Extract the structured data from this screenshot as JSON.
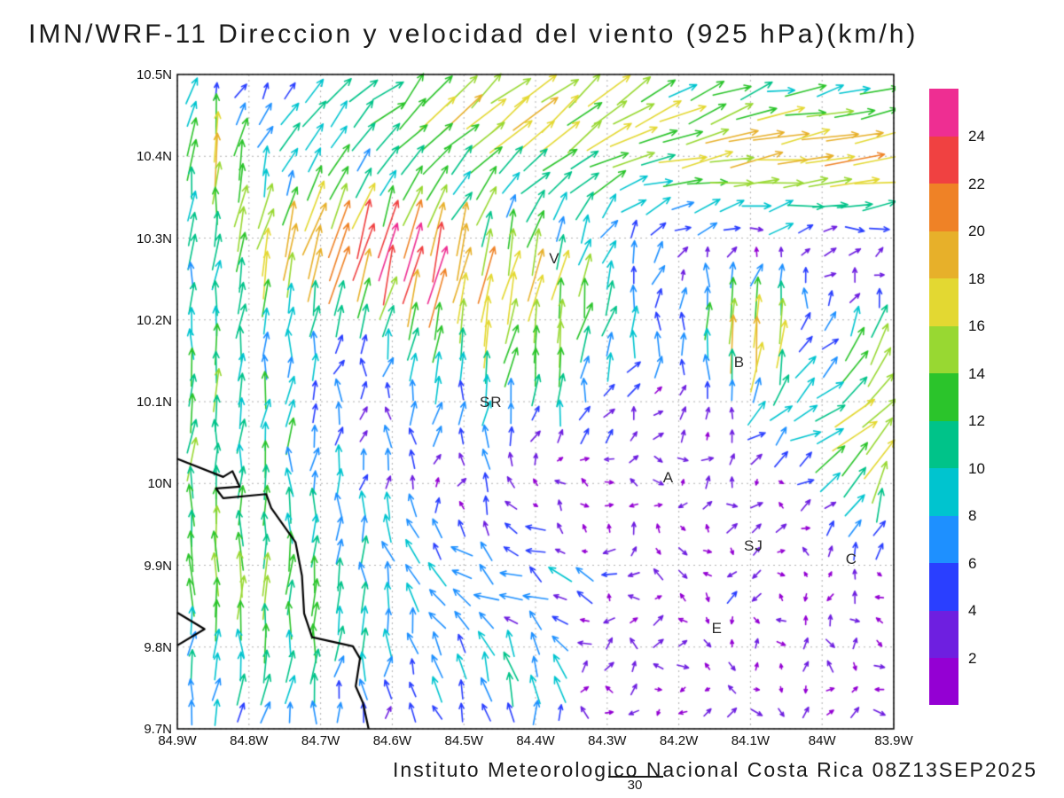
{
  "title": "IMN/WRF-11 Direccion y velocidad del viento (925 hPa)(km/h)",
  "caption": "Instituto Meteorologico Nacional Costa Rica 08Z13SEP2025",
  "footnote": "30",
  "chart_data": {
    "type": "vector_field",
    "model": "IMN/WRF-11",
    "variable": "Direccion y velocidad del viento",
    "pressure_level": "925 hPa",
    "units": "km/h",
    "valid_time": "08Z13SEP2025",
    "grid_lines": "dotted",
    "x_axis": {
      "kind": "longitude_west",
      "range": [
        84.9,
        83.9
      ],
      "ticks": [
        {
          "label": "84.9W",
          "value": 84.9
        },
        {
          "label": "84.8W",
          "value": 84.8
        },
        {
          "label": "84.7W",
          "value": 84.7
        },
        {
          "label": "84.6W",
          "value": 84.6
        },
        {
          "label": "84.5W",
          "value": 84.5
        },
        {
          "label": "84.4W",
          "value": 84.4
        },
        {
          "label": "84.3W",
          "value": 84.3
        },
        {
          "label": "84.2W",
          "value": 84.2
        },
        {
          "label": "84.1W",
          "value": 84.1
        },
        {
          "label": "84W",
          "value": 84.0
        },
        {
          "label": "83.9W",
          "value": 83.9
        }
      ]
    },
    "y_axis": {
      "kind": "latitude_north",
      "range": [
        9.7,
        10.5
      ],
      "ticks": [
        {
          "label": "10.5N",
          "value": 10.5
        },
        {
          "label": "10.4N",
          "value": 10.4
        },
        {
          "label": "10.3N",
          "value": 10.3
        },
        {
          "label": "10.2N",
          "value": 10.2
        },
        {
          "label": "10.1N",
          "value": 10.1
        },
        {
          "label": "10N",
          "value": 10.0
        },
        {
          "label": "9.9N",
          "value": 9.9
        },
        {
          "label": "9.8N",
          "value": 9.8
        },
        {
          "label": "9.7N",
          "value": 9.7
        }
      ]
    },
    "colorbar": {
      "label_side": "right",
      "levels": [
        2,
        4,
        6,
        8,
        10,
        12,
        14,
        16,
        18,
        20,
        22,
        24
      ],
      "colors": [
        "#9400d3",
        "#6e1fe0",
        "#2a3fff",
        "#1e90ff",
        "#00c4cf",
        "#00c389",
        "#2bc42b",
        "#98d832",
        "#e3d832",
        "#e7b02a",
        "#ef8226",
        "#f04141",
        "#ee2e92"
      ]
    },
    "stations": [
      {
        "label": "V",
        "lon": 84.37,
        "lat": 10.273
      },
      {
        "label": "B",
        "lon": 84.112,
        "lat": 10.147
      },
      {
        "label": "SR",
        "lon": 84.467,
        "lat": 10.098
      },
      {
        "label": "A",
        "lon": 84.211,
        "lat": 10.006
      },
      {
        "label": "SJ",
        "lon": 84.098,
        "lat": 9.922
      },
      {
        "label": "C",
        "lon": 83.956,
        "lat": 9.906
      },
      {
        "label": "E",
        "lon": 84.143,
        "lat": 9.821
      }
    ],
    "coastlines": [
      [
        [
          84.9,
          10.03
        ],
        [
          84.836,
          10.008
        ],
        [
          84.823,
          10.015
        ],
        [
          84.813,
          9.996
        ],
        [
          84.846,
          9.994
        ],
        [
          84.836,
          9.982
        ],
        [
          84.776,
          9.987
        ],
        [
          84.769,
          9.97
        ],
        [
          84.735,
          9.928
        ],
        [
          84.726,
          9.887
        ],
        [
          84.723,
          9.841
        ],
        [
          84.712,
          9.812
        ],
        [
          84.655,
          9.801
        ],
        [
          84.645,
          9.786
        ],
        [
          84.651,
          9.752
        ],
        [
          84.641,
          9.732
        ],
        [
          84.633,
          9.7
        ]
      ],
      [
        [
          84.9,
          9.842
        ],
        [
          84.862,
          9.822
        ],
        [
          84.9,
          9.802
        ]
      ]
    ],
    "wind_field": {
      "grid": {
        "lon_start": 84.88,
        "lon_end": 83.92,
        "cols": 29,
        "lat_start": 10.48,
        "lat_end": 9.72,
        "rows": 28
      },
      "base_flow": {
        "u": 0.4,
        "v": 0.6
      },
      "noise": {
        "seed": 20250913,
        "amp": 2.6
      },
      "features": [
        {
          "name": "ne-westerly-jet",
          "lon": 83.95,
          "lat": 10.42,
          "rlon": 0.38,
          "rlat": 0.09,
          "u": 15,
          "v": 1
        },
        {
          "name": "ne-jet-south-edge",
          "lon": 83.97,
          "lat": 10.37,
          "rlon": 0.24,
          "rlat": 0.05,
          "u": 5,
          "v": 0
        },
        {
          "name": "north-center-ne-flow",
          "lon": 84.45,
          "lat": 10.46,
          "rlon": 0.3,
          "rlat": 0.08,
          "u": 10,
          "v": 10
        },
        {
          "name": "west-coast-northerly",
          "lon": 84.85,
          "lat": 10.15,
          "rlon": 0.16,
          "rlat": 0.3,
          "u": 0,
          "v": 10
        },
        {
          "name": "center-north-updraft",
          "lon": 84.42,
          "lat": 10.22,
          "rlon": 0.17,
          "rlat": 0.13,
          "u": 3,
          "v": 16
        },
        {
          "name": "west-center-nne",
          "lon": 84.7,
          "lat": 10.3,
          "rlon": 0.11,
          "rlat": 0.07,
          "u": 5,
          "v": 13
        },
        {
          "name": "center-west-nne",
          "lon": 84.58,
          "lat": 10.28,
          "rlon": 0.1,
          "rlat": 0.07,
          "u": 4,
          "v": 14
        },
        {
          "name": "nw-corner-updraft",
          "lon": 84.85,
          "lat": 10.41,
          "rlon": 0.035,
          "rlat": 0.05,
          "u": 1,
          "v": 14
        },
        {
          "name": "b-strong-north",
          "lon": 84.1,
          "lat": 10.18,
          "rlon": 0.07,
          "rlat": 0.07,
          "u": 1,
          "v": 19
        },
        {
          "name": "east-eddy-ene",
          "lon": 83.97,
          "lat": 10.08,
          "rlon": 0.1,
          "rlat": 0.07,
          "u": 11,
          "v": 5
        },
        {
          "name": "east-edge-updraft",
          "lon": 83.93,
          "lat": 10.01,
          "rlon": 0.05,
          "rlat": 0.08,
          "u": 4,
          "v": 12
        },
        {
          "name": "east-edge-nne",
          "lon": 83.93,
          "lat": 10.17,
          "rlon": 0.04,
          "rlat": 0.06,
          "u": 3,
          "v": 12
        },
        {
          "name": "gulf-northerly",
          "lon": 84.75,
          "lat": 9.85,
          "rlon": 0.24,
          "rlat": 0.2,
          "u": 0,
          "v": 9
        },
        {
          "name": "south-center-westerly",
          "lon": 84.45,
          "lat": 9.88,
          "rlon": 0.15,
          "rlat": 0.09,
          "u": -7,
          "v": 1
        },
        {
          "name": "south-center-updraft",
          "lon": 84.43,
          "lat": 9.75,
          "rlon": 0.1,
          "rlat": 0.06,
          "u": -1,
          "v": 7
        }
      ]
    }
  }
}
